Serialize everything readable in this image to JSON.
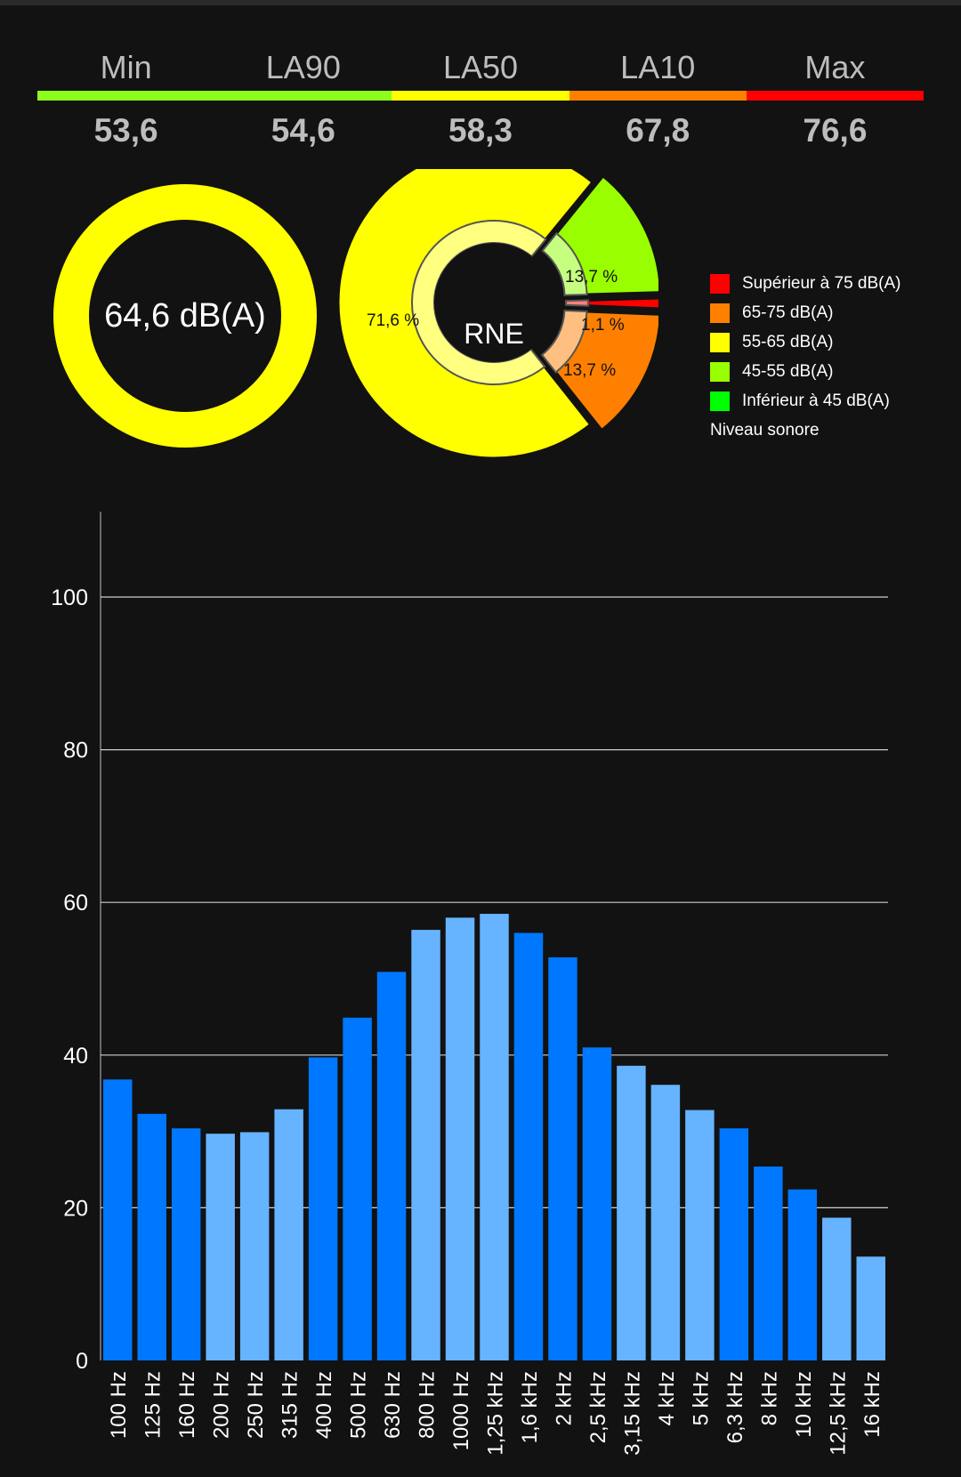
{
  "stats": [
    {
      "label": "Min",
      "value": "53,6",
      "color": "#8cff1a"
    },
    {
      "label": "LA90",
      "value": "54,6",
      "color": "#8cff1a"
    },
    {
      "label": "LA50",
      "value": "58,3",
      "color": "#ffff00"
    },
    {
      "label": "LA10",
      "value": "67,8",
      "color": "#ff8000"
    },
    {
      "label": "Max",
      "value": "76,6",
      "color": "#ff0000"
    }
  ],
  "ring": {
    "value_text": "64,6 dB(A)",
    "color": "#ffff00"
  },
  "pie": {
    "center_label": "RNE",
    "slices": [
      {
        "label": "13,7 %",
        "percent": 13.7,
        "color": "#99ff00",
        "inner_color": "#c6ff80"
      },
      {
        "label": "1,1 %",
        "percent": 1.1,
        "color": "#ff0000",
        "inner_color": "#ff8080"
      },
      {
        "label": "13,7 %",
        "percent": 13.7,
        "color": "#ff8000",
        "inner_color": "#ffbf80"
      },
      {
        "label": "71,6 %",
        "percent": 71.6,
        "color": "#ffff00",
        "inner_color": "#ffff80"
      }
    ]
  },
  "legend": {
    "items": [
      {
        "label": "Supérieur à 75 dB(A)",
        "color": "#ff0000"
      },
      {
        "label": "65-75 dB(A)",
        "color": "#ff8000"
      },
      {
        "label": "55-65 dB(A)",
        "color": "#ffff00"
      },
      {
        "label": "45-55 dB(A)",
        "color": "#99ff00"
      },
      {
        "label": "Inférieur à 45 dB(A)",
        "color": "#00ff00"
      }
    ],
    "caption": "Niveau sonore"
  },
  "chart_data": {
    "type": "bar",
    "categories": [
      "100 Hz",
      "125 Hz",
      "160 Hz",
      "200 Hz",
      "250 Hz",
      "315 Hz",
      "400 Hz",
      "500 Hz",
      "630 Hz",
      "800 Hz",
      "1000 Hz",
      "1,25 kHz",
      "1,6 kHz",
      "2 kHz",
      "2,5 kHz",
      "3,15 kHz",
      "4 kHz",
      "5 kHz",
      "6,3 kHz",
      "8 kHz",
      "10 kHz",
      "12,5 kHz",
      "16 kHz"
    ],
    "values": [
      36.8,
      32.3,
      30.4,
      29.7,
      29.9,
      32.9,
      39.7,
      44.9,
      50.9,
      56.4,
      58.0,
      58.5,
      56.0,
      52.8,
      41.0,
      38.6,
      36.1,
      32.8,
      30.4,
      25.4,
      22.4,
      18.7,
      13.6
    ],
    "bar_colors": [
      "#0077ff",
      "#0077ff",
      "#0077ff",
      "#66b3ff",
      "#66b3ff",
      "#66b3ff",
      "#0077ff",
      "#0077ff",
      "#0077ff",
      "#66b3ff",
      "#66b3ff",
      "#66b3ff",
      "#0077ff",
      "#0077ff",
      "#0077ff",
      "#66b3ff",
      "#66b3ff",
      "#66b3ff",
      "#0077ff",
      "#0077ff",
      "#0077ff",
      "#66b3ff",
      "#66b3ff"
    ],
    "yticks": [
      0,
      20,
      40,
      60,
      80,
      100
    ],
    "ylim": [
      0,
      110
    ],
    "grid": true,
    "title": "",
    "xlabel": "",
    "ylabel": ""
  }
}
